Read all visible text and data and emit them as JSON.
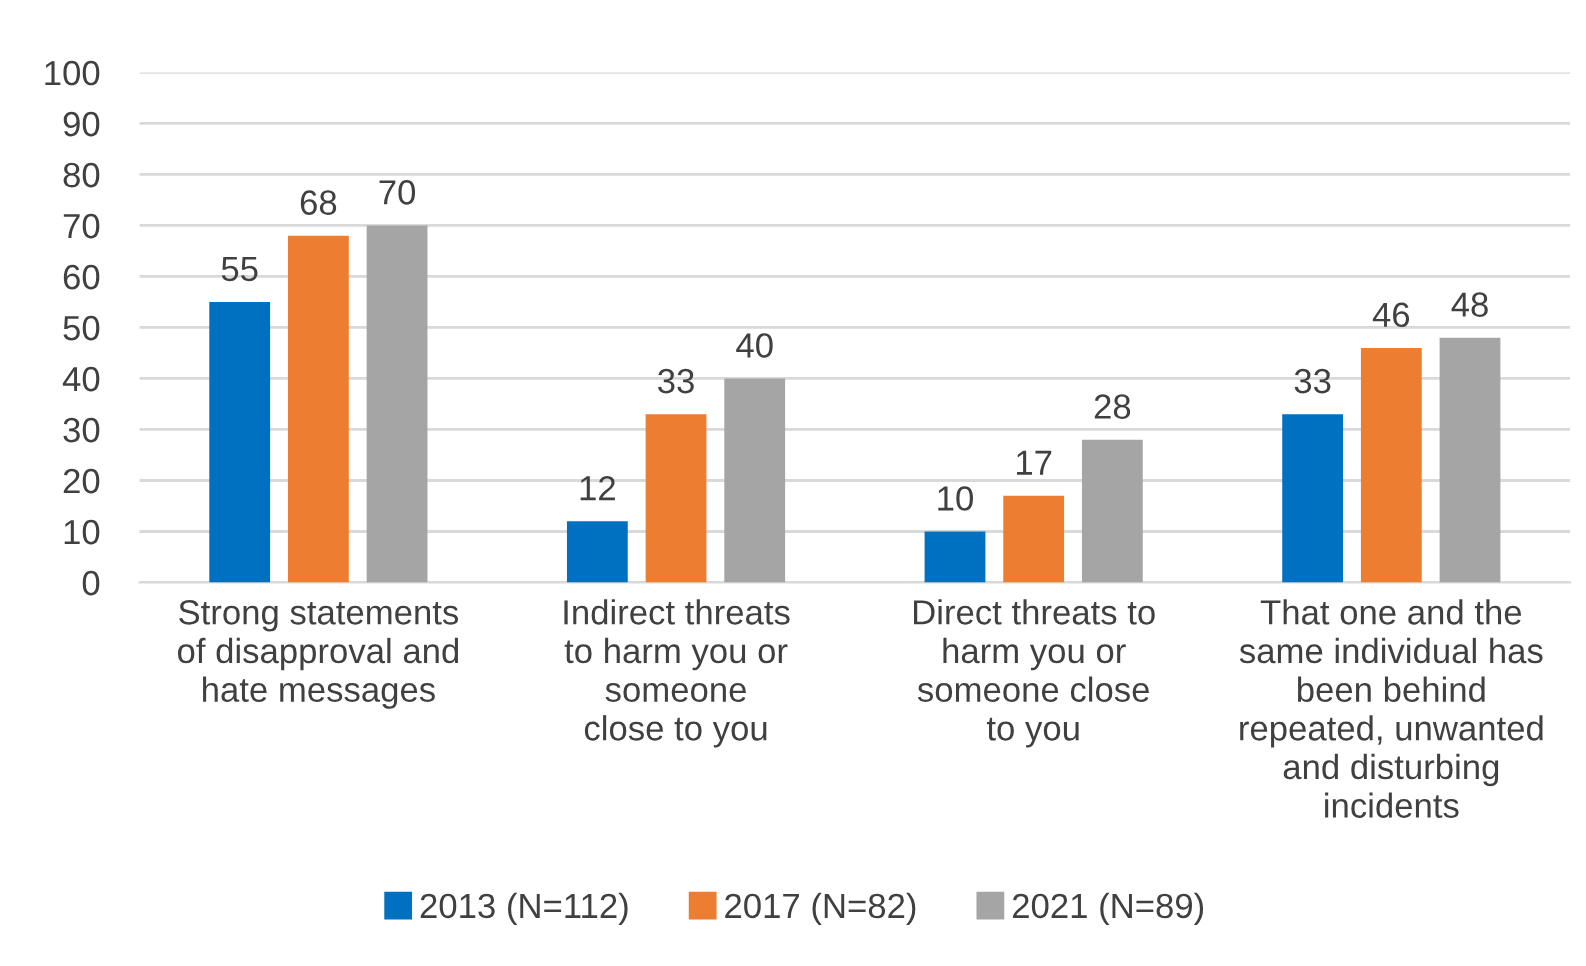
{
  "chart_data": {
    "type": "bar",
    "categories": [
      "Strong statements\nof disapproval and\nhate messages",
      "Indirect threats\nto harm you or\nsomeone\nclose to you",
      "Direct threats to\nharm you or\nsomeone close\nto you",
      "That one and the\nsame individual has\nbeen behind\nrepeated, unwanted\nand disturbing\nincidents"
    ],
    "series": [
      {
        "name": "2013 (N=112)",
        "color": "#0070c0",
        "values": [
          55,
          12,
          10,
          33
        ]
      },
      {
        "name": "2017 (N=82)",
        "color": "#ed7d31",
        "values": [
          68,
          33,
          17,
          46
        ]
      },
      {
        "name": "2021 (N=89)",
        "color": "#a5a5a5",
        "values": [
          70,
          40,
          28,
          48
        ]
      }
    ],
    "ylim": [
      0,
      100
    ],
    "yticks": [
      0,
      10,
      20,
      30,
      40,
      50,
      60,
      70,
      80,
      90,
      100
    ],
    "grid": "y",
    "legend": "bottom",
    "data_labels": true
  }
}
